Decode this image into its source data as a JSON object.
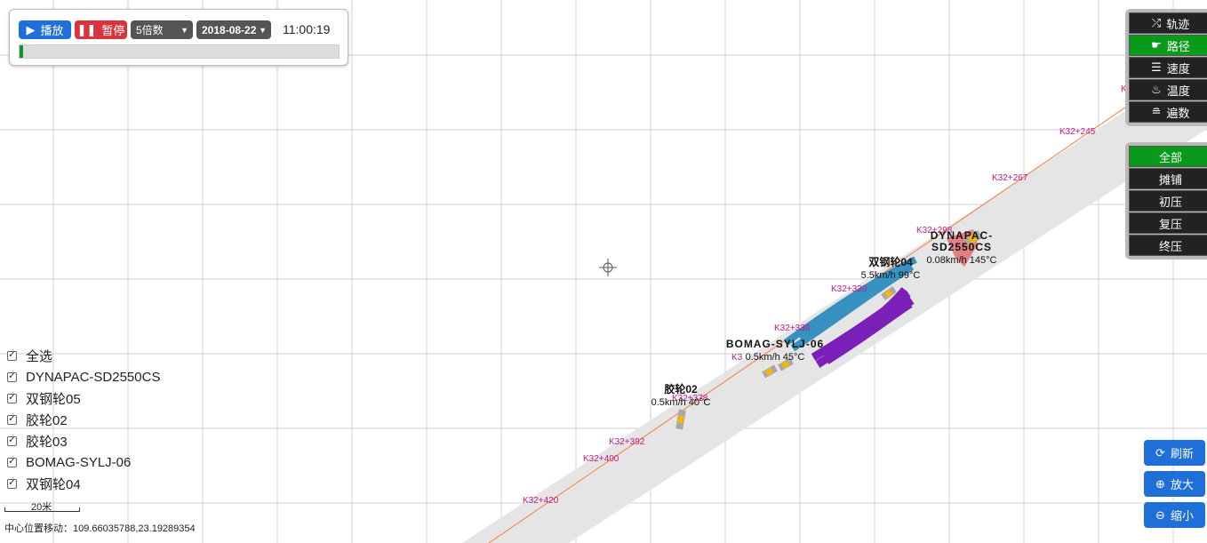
{
  "player": {
    "play_label": "播放",
    "pause_label": "暂停",
    "speed": "5倍数",
    "date": "2018-08-22",
    "time": "11:00:19",
    "progress": 0.012
  },
  "layers": [
    {
      "label": "轨迹",
      "icon": "shuffle-icon",
      "active": false
    },
    {
      "label": "路径",
      "icon": "hand-icon",
      "active": true
    },
    {
      "label": "速度",
      "icon": "list-indent-icon",
      "active": false
    },
    {
      "label": "温度",
      "icon": "flame-icon",
      "active": false
    },
    {
      "label": "遍数",
      "icon": "stack-icon",
      "active": false
    }
  ],
  "phases": [
    {
      "label": "全部",
      "active": true
    },
    {
      "label": "摊铺",
      "active": false
    },
    {
      "label": "初压",
      "active": false
    },
    {
      "label": "复压",
      "active": false
    },
    {
      "label": "终压",
      "active": false
    }
  ],
  "actions": [
    {
      "label": "刷新",
      "icon": "refresh-icon"
    },
    {
      "label": "放大",
      "icon": "zoom-in-icon"
    },
    {
      "label": "缩小",
      "icon": "zoom-out-icon"
    }
  ],
  "checklist": [
    {
      "label": "全选",
      "checked": true
    },
    {
      "label": "DYNAPAC-SD2550CS",
      "checked": true
    },
    {
      "label": "双钢轮05",
      "checked": true
    },
    {
      "label": "胶轮02",
      "checked": true
    },
    {
      "label": "胶轮03",
      "checked": true
    },
    {
      "label": "BOMAG-SYLJ-06",
      "checked": true
    },
    {
      "label": "双钢轮04",
      "checked": true
    }
  ],
  "scale_label": "20米",
  "center": {
    "label": "中心位置移动：",
    "value": "109.66035788,23.19289354"
  },
  "stakes": [
    "K32+245",
    "K32+267",
    "K32+298",
    "K32+320",
    "K32+338",
    "K3",
    "K32+378",
    "K32+392",
    "K32+400",
    "K32+420",
    "K3",
    "K3"
  ],
  "vehicles": [
    {
      "name": "DYNAPAC-SD2550CS",
      "name_line1": "DYNAPAC-",
      "name_line2": "SD2550CS",
      "status": "0.08km/h 145°C"
    },
    {
      "name": "双钢轮04",
      "status": "5.5km/h 99°C"
    },
    {
      "name": "BOMAG-SYLJ-06",
      "status": "0.5km/h 45°C"
    },
    {
      "name": "胶轮02",
      "status": "0.5km/h 40°C"
    }
  ],
  "colors": {
    "road": "#e5e5e5",
    "centerline": "#f08040",
    "stake_text": "#c0188a",
    "path_blue": "#2f8ec0",
    "path_purple": "#7a1fb8",
    "active_green": "#0a9a1a",
    "button_blue": "#1f6fd8",
    "pause_red": "#d9343c"
  }
}
